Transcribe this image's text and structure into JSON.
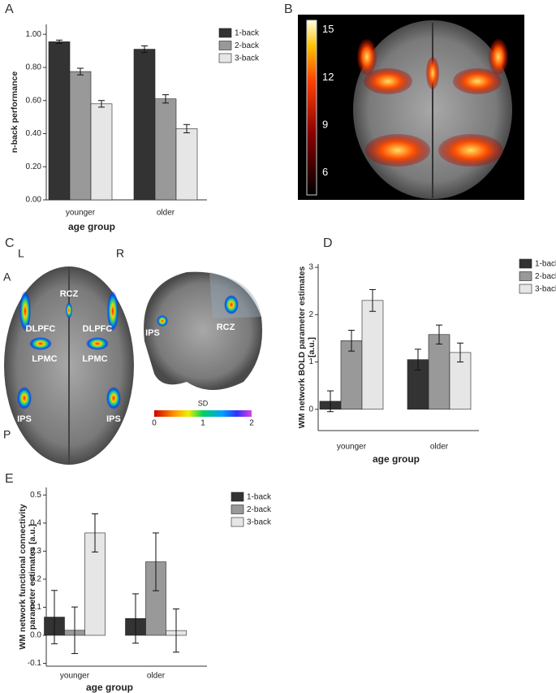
{
  "panel_labels": [
    "A",
    "B",
    "C",
    "D",
    "E"
  ],
  "panel_b": {
    "colorbar_ticks": [
      15,
      12,
      9,
      6
    ]
  },
  "panel_c": {
    "orientation": [
      "A",
      "L",
      "R",
      "P"
    ],
    "regions": [
      "RCZ",
      "DLPFC",
      "DLPFC",
      "LPMC",
      "LPMC",
      "IPS",
      "IPS",
      "IPS",
      "RCZ"
    ],
    "colorbar_title": "SD",
    "colorbar_ticks": [
      0,
      1,
      2
    ]
  },
  "chart_data": [
    {
      "type": "bar",
      "categories": [
        "younger",
        "older"
      ],
      "series": [
        {
          "name": "1-back",
          "color": "#333333",
          "values": [
            0.955,
            0.91
          ],
          "errors": [
            0.01,
            0.02
          ]
        },
        {
          "name": "2-back",
          "color": "#999999",
          "values": [
            0.775,
            0.61
          ],
          "errors": [
            0.02,
            0.025
          ]
        },
        {
          "name": "3-back",
          "color": "#e6e6e6",
          "values": [
            0.58,
            0.43
          ],
          "errors": [
            0.02,
            0.025
          ]
        }
      ],
      "ylabel": [
        "n-back performance"
      ],
      "xlabel": "age group",
      "ylim": [
        0,
        1.06
      ],
      "yticks": [
        {
          "value": 0,
          "label": "0.00"
        },
        {
          "value": 0.2,
          "label": "0.20"
        },
        {
          "value": 0.4,
          "label": "0.40"
        },
        {
          "value": 0.6,
          "label": "0.60"
        },
        {
          "value": 0.8,
          "label": "0.80"
        },
        {
          "value": 1,
          "label": "1.00"
        }
      ],
      "legend": "upper right outside"
    },
    {
      "type": "bar",
      "categories": [
        "younger",
        "older"
      ],
      "series": [
        {
          "name": "1-back",
          "color": "#333333",
          "values": [
            0.17,
            1.05
          ],
          "errors": [
            0.22,
            0.22
          ]
        },
        {
          "name": "2-back",
          "color": "#999999",
          "values": [
            1.45,
            1.58
          ],
          "errors": [
            0.22,
            0.2
          ]
        },
        {
          "name": "3-back",
          "color": "#e6e6e6",
          "values": [
            2.3,
            1.2
          ],
          "errors": [
            0.23,
            0.2
          ]
        }
      ],
      "ylabel": [
        "WM network BOLD parameter estimates",
        "[a.u.]"
      ],
      "xlabel": "age group",
      "ylim": [
        -0.45,
        3.07
      ],
      "yticks": [
        0,
        1,
        2,
        3
      ],
      "legend": "upper right outside"
    },
    {
      "type": "bar",
      "categories": [
        "younger",
        "older"
      ],
      "series": [
        {
          "name": "1-back",
          "color": "#333333",
          "values": [
            0.065,
            0.06
          ],
          "errors": [
            0.095,
            0.088
          ]
        },
        {
          "name": "2-back",
          "color": "#999999",
          "values": [
            0.018,
            0.262
          ],
          "errors": [
            0.083,
            0.103
          ]
        },
        {
          "name": "3-back",
          "color": "#e6e6e6",
          "values": [
            0.365,
            0.017
          ],
          "errors": [
            0.068,
            0.077
          ]
        }
      ],
      "ylabel": [
        "WM network functional connectivity",
        "parameter estimates [a.u.]"
      ],
      "xlabel": "age group",
      "ylim": [
        -0.11,
        0.527
      ],
      "yticks": [
        -0.1,
        {
          "value": 0,
          "label": "0.0"
        },
        0.1,
        0.2,
        0.3,
        0.4,
        0.5
      ],
      "legend": "upper right outside"
    }
  ]
}
